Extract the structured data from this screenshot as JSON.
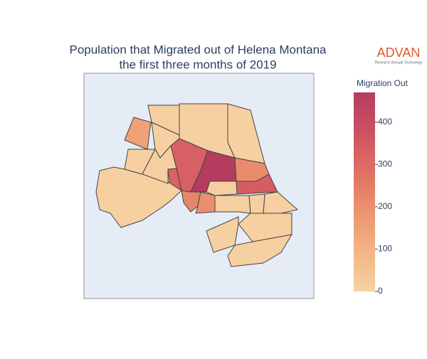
{
  "chart_data": {
    "type": "choropleth",
    "title": [
      "Population that Migrated out of Helena Montana",
      "the first three months of 2019"
    ],
    "logo": {
      "name": "ADVAN",
      "tagline": "Research through Technology"
    },
    "colorbar": {
      "title": "Migration Out",
      "range": [
        0,
        470
      ],
      "ticks": [
        0,
        100,
        200,
        300,
        400
      ],
      "colorscale": [
        "#f6d2a3",
        "#f3b484",
        "#ec9470",
        "#e07063",
        "#cd5163",
        "#b43d5f"
      ]
    },
    "values": [
      150,
      10,
      5,
      5,
      5,
      330,
      470,
      210,
      340,
      320,
      230,
      200,
      10,
      5,
      5,
      10,
      5,
      5,
      5,
      5,
      5,
      5
    ]
  }
}
